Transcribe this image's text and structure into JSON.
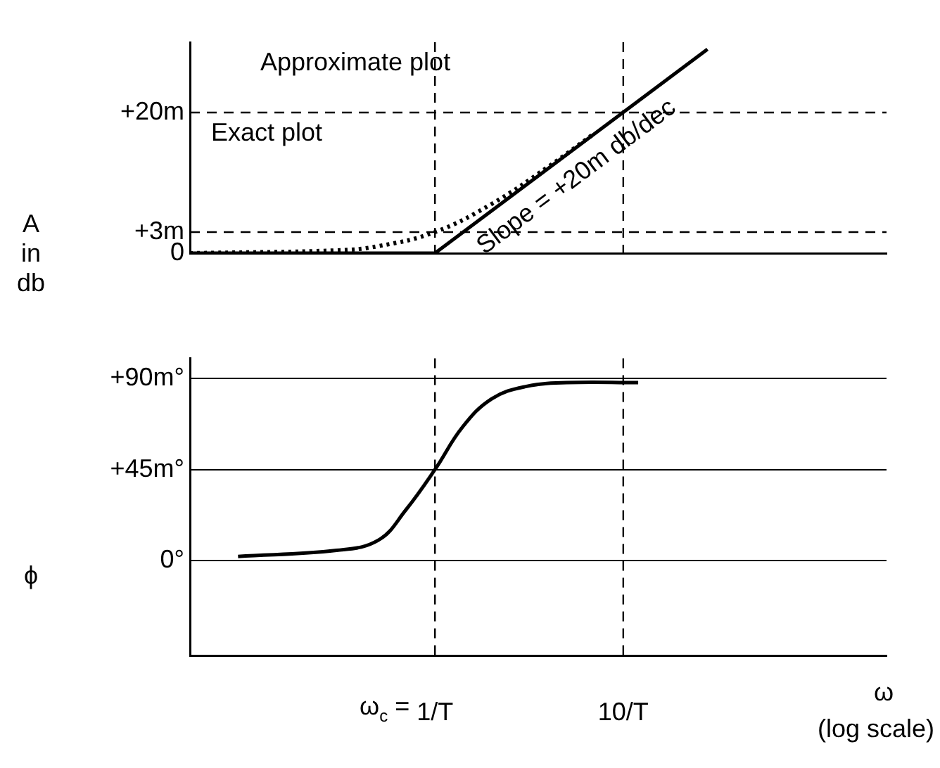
{
  "chart_data": [
    {
      "type": "line",
      "ylabel": "A in db",
      "x": [
        0.05,
        1,
        28
      ],
      "series": [
        {
          "color": "#000000",
          "values": [
            0,
            0,
            29
          ],
          "line_style": "solid"
        },
        {
          "color": "#000000",
          "x": [
            0.05,
            0.3,
            0.5,
            1,
            2,
            4,
            7
          ],
          "values": [
            0,
            0.4,
            1,
            3,
            7,
            12.3,
            17
          ],
          "line_style": "dotted"
        }
      ],
      "xlim": [
        0.05,
        250
      ],
      "ylim": [
        0,
        30
      ],
      "yticks": [
        0,
        {
          "value": 3,
          "label": "+3m"
        },
        {
          "value": 20,
          "label": "+20m"
        }
      ],
      "log": "x",
      "tick_labels": "y",
      "marker": "none",
      "legend": false,
      "grid": false,
      "ref_lines": [
        {
          "axis": "x",
          "value": 1,
          "line_style": "dashed"
        },
        {
          "axis": "x",
          "value": 10,
          "line_style": "dashed"
        },
        {
          "axis": "y",
          "value": 3,
          "line_style": "dashed"
        },
        {
          "axis": "y",
          "value": 20,
          "line_style": "dashed"
        }
      ],
      "annotations": [
        "Approximate plot",
        "Exact plot",
        "Slope = +20m db/dec"
      ]
    },
    {
      "type": "line",
      "ylabel": "ϕ",
      "xlabel": "ω",
      "x": [
        0.09,
        0.3,
        0.5,
        0.7,
        1,
        1.4,
        2,
        3,
        5,
        12
      ],
      "series": [
        {
          "color": "#000000",
          "values": [
            2,
            5,
            10,
            25,
            45,
            66,
            80,
            86,
            88,
            88
          ],
          "line_style": "solid"
        }
      ],
      "xlim": [
        0.05,
        250
      ],
      "ylim": [
        -47,
        100
      ],
      "xticks": [
        {
          "value": 1,
          "label": "1/T"
        },
        {
          "value": 10,
          "label": "10/T"
        }
      ],
      "yticks": [
        {
          "value": 0,
          "label": "0°"
        },
        {
          "value": 45,
          "label": "+45m°"
        },
        {
          "value": 90,
          "label": "+90m°"
        }
      ],
      "log": "x",
      "marker": "none",
      "legend": false,
      "grid": "y",
      "ref_lines": [
        {
          "axis": "x",
          "value": 1,
          "line_style": "dashed"
        },
        {
          "axis": "x",
          "value": 10,
          "line_style": "dashed"
        }
      ],
      "annotations": [
        "ω$_{c}$ =",
        "(log scale)"
      ]
    }
  ]
}
